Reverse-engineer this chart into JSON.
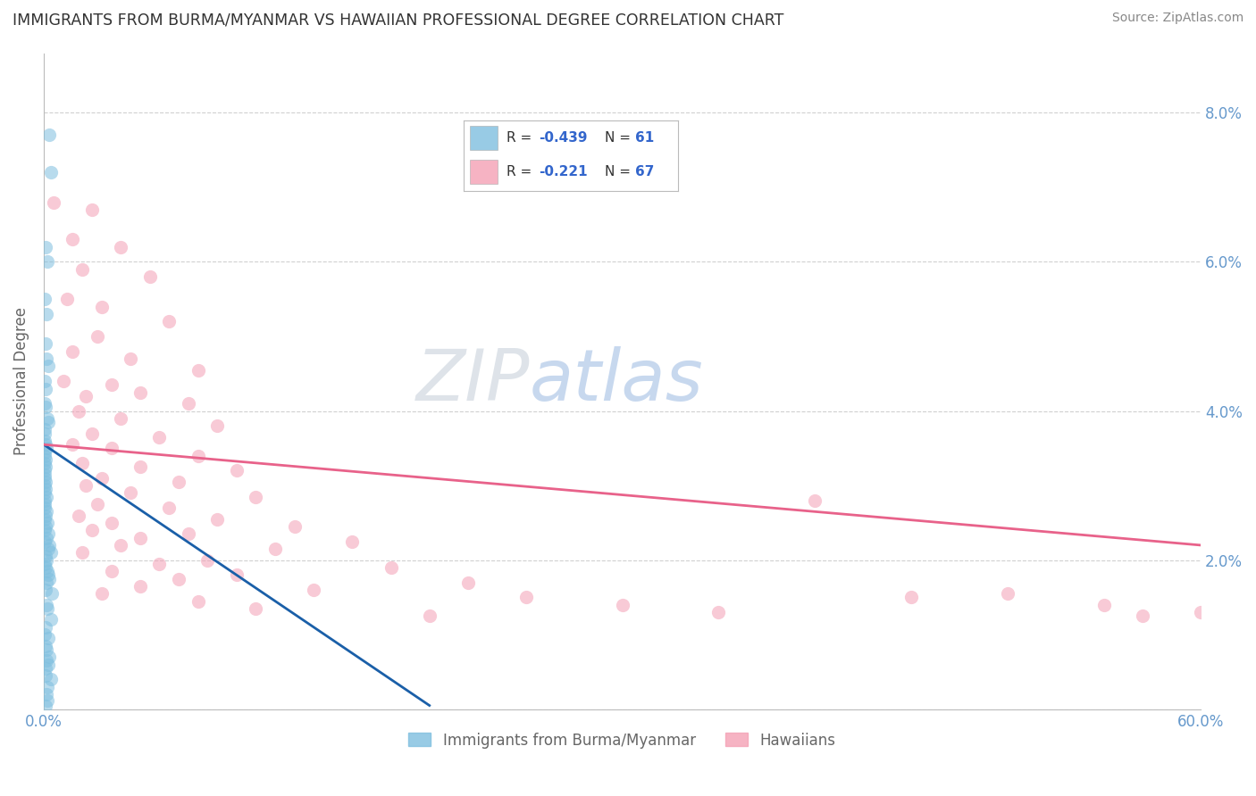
{
  "title": "IMMIGRANTS FROM BURMA/MYANMAR VS HAWAIIAN PROFESSIONAL DEGREE CORRELATION CHART",
  "source": "Source: ZipAtlas.com",
  "ylabel": "Professional Degree",
  "xlim": [
    0.0,
    60.0
  ],
  "ylim": [
    0.0,
    8.8
  ],
  "x_ticks": [
    0.0,
    10.0,
    20.0,
    30.0,
    40.0,
    50.0,
    60.0
  ],
  "y_ticks": [
    0.0,
    2.0,
    4.0,
    6.0,
    8.0
  ],
  "blue_scatter": [
    [
      0.3,
      7.7
    ],
    [
      0.35,
      7.2
    ],
    [
      0.1,
      6.2
    ],
    [
      0.2,
      6.0
    ],
    [
      0.05,
      5.5
    ],
    [
      0.15,
      5.3
    ],
    [
      0.08,
      4.9
    ],
    [
      0.12,
      4.7
    ],
    [
      0.25,
      4.6
    ],
    [
      0.04,
      4.4
    ],
    [
      0.1,
      4.3
    ],
    [
      0.06,
      4.1
    ],
    [
      0.08,
      4.05
    ],
    [
      0.18,
      3.9
    ],
    [
      0.22,
      3.85
    ],
    [
      0.05,
      3.75
    ],
    [
      0.07,
      3.7
    ],
    [
      0.03,
      3.6
    ],
    [
      0.09,
      3.55
    ],
    [
      0.12,
      3.5
    ],
    [
      0.06,
      3.45
    ],
    [
      0.04,
      3.4
    ],
    [
      0.08,
      3.35
    ],
    [
      0.05,
      3.3
    ],
    [
      0.1,
      3.25
    ],
    [
      0.07,
      3.2
    ],
    [
      0.03,
      3.15
    ],
    [
      0.06,
      3.1
    ],
    [
      0.09,
      3.05
    ],
    [
      0.04,
      3.0
    ],
    [
      0.08,
      2.95
    ],
    [
      0.05,
      2.9
    ],
    [
      0.12,
      2.85
    ],
    [
      0.07,
      2.8
    ],
    [
      0.03,
      2.75
    ],
    [
      0.06,
      2.7
    ],
    [
      0.15,
      2.65
    ],
    [
      0.09,
      2.6
    ],
    [
      0.04,
      2.55
    ],
    [
      0.18,
      2.5
    ],
    [
      0.08,
      2.45
    ],
    [
      0.05,
      2.4
    ],
    [
      0.22,
      2.35
    ],
    [
      0.12,
      2.3
    ],
    [
      0.07,
      2.25
    ],
    [
      0.3,
      2.2
    ],
    [
      0.25,
      2.15
    ],
    [
      0.35,
      2.1
    ],
    [
      0.08,
      2.05
    ],
    [
      0.15,
      2.0
    ],
    [
      0.05,
      1.95
    ],
    [
      0.1,
      1.9
    ],
    [
      0.2,
      1.85
    ],
    [
      0.25,
      1.8
    ],
    [
      0.3,
      1.75
    ],
    [
      0.12,
      1.7
    ],
    [
      0.08,
      1.6
    ],
    [
      0.4,
      1.55
    ],
    [
      0.15,
      1.4
    ],
    [
      0.18,
      1.35
    ],
    [
      0.35,
      1.2
    ],
    [
      0.1,
      1.1
    ],
    [
      0.05,
      1.0
    ],
    [
      0.22,
      0.95
    ],
    [
      0.08,
      0.85
    ],
    [
      0.12,
      0.8
    ],
    [
      0.3,
      0.7
    ],
    [
      0.15,
      0.65
    ],
    [
      0.25,
      0.6
    ],
    [
      0.1,
      0.55
    ],
    [
      0.08,
      0.45
    ],
    [
      0.35,
      0.4
    ],
    [
      0.18,
      0.3
    ],
    [
      0.12,
      0.2
    ],
    [
      0.2,
      0.12
    ],
    [
      0.08,
      0.05
    ]
  ],
  "pink_scatter": [
    [
      0.5,
      6.8
    ],
    [
      2.5,
      6.7
    ],
    [
      1.5,
      6.3
    ],
    [
      4.0,
      6.2
    ],
    [
      2.0,
      5.9
    ],
    [
      5.5,
      5.8
    ],
    [
      1.2,
      5.5
    ],
    [
      3.0,
      5.4
    ],
    [
      6.5,
      5.2
    ],
    [
      2.8,
      5.0
    ],
    [
      1.5,
      4.8
    ],
    [
      4.5,
      4.7
    ],
    [
      8.0,
      4.55
    ],
    [
      1.0,
      4.4
    ],
    [
      3.5,
      4.35
    ],
    [
      5.0,
      4.25
    ],
    [
      2.2,
      4.2
    ],
    [
      7.5,
      4.1
    ],
    [
      1.8,
      4.0
    ],
    [
      4.0,
      3.9
    ],
    [
      9.0,
      3.8
    ],
    [
      2.5,
      3.7
    ],
    [
      6.0,
      3.65
    ],
    [
      1.5,
      3.55
    ],
    [
      3.5,
      3.5
    ],
    [
      8.0,
      3.4
    ],
    [
      2.0,
      3.3
    ],
    [
      5.0,
      3.25
    ],
    [
      10.0,
      3.2
    ],
    [
      3.0,
      3.1
    ],
    [
      7.0,
      3.05
    ],
    [
      2.2,
      3.0
    ],
    [
      4.5,
      2.9
    ],
    [
      11.0,
      2.85
    ],
    [
      2.8,
      2.75
    ],
    [
      6.5,
      2.7
    ],
    [
      1.8,
      2.6
    ],
    [
      9.0,
      2.55
    ],
    [
      3.5,
      2.5
    ],
    [
      13.0,
      2.45
    ],
    [
      2.5,
      2.4
    ],
    [
      7.5,
      2.35
    ],
    [
      5.0,
      2.3
    ],
    [
      16.0,
      2.25
    ],
    [
      4.0,
      2.2
    ],
    [
      12.0,
      2.15
    ],
    [
      2.0,
      2.1
    ],
    [
      8.5,
      2.0
    ],
    [
      6.0,
      1.95
    ],
    [
      18.0,
      1.9
    ],
    [
      3.5,
      1.85
    ],
    [
      10.0,
      1.8
    ],
    [
      7.0,
      1.75
    ],
    [
      22.0,
      1.7
    ],
    [
      5.0,
      1.65
    ],
    [
      14.0,
      1.6
    ],
    [
      3.0,
      1.55
    ],
    [
      25.0,
      1.5
    ],
    [
      8.0,
      1.45
    ],
    [
      30.0,
      1.4
    ],
    [
      11.0,
      1.35
    ],
    [
      35.0,
      1.3
    ],
    [
      20.0,
      1.25
    ],
    [
      40.0,
      2.8
    ],
    [
      45.0,
      1.5
    ],
    [
      50.0,
      1.55
    ],
    [
      55.0,
      1.4
    ],
    [
      57.0,
      1.25
    ],
    [
      60.0,
      1.3
    ]
  ],
  "blue_line": [
    [
      0.0,
      3.55
    ],
    [
      20.0,
      0.05
    ]
  ],
  "pink_line": [
    [
      0.0,
      3.55
    ],
    [
      60.0,
      2.2
    ]
  ],
  "blue_dot_color": "#7fbfdf",
  "pink_dot_color": "#f4a0b5",
  "blue_line_color": "#1a5fa8",
  "pink_line_color": "#e8628a",
  "bg_color": "#ffffff",
  "grid_color": "#d0d0d0",
  "title_color": "#333333",
  "source_color": "#888888",
  "tick_color": "#6699cc",
  "ylabel_color": "#666666",
  "legend_r_color": "#3366cc",
  "legend_text_color": "#333333",
  "watermark_text": "ZIPatlas",
  "watermark_zip_color": "#d0d8e8",
  "watermark_atlas_color": "#c8d8f0"
}
